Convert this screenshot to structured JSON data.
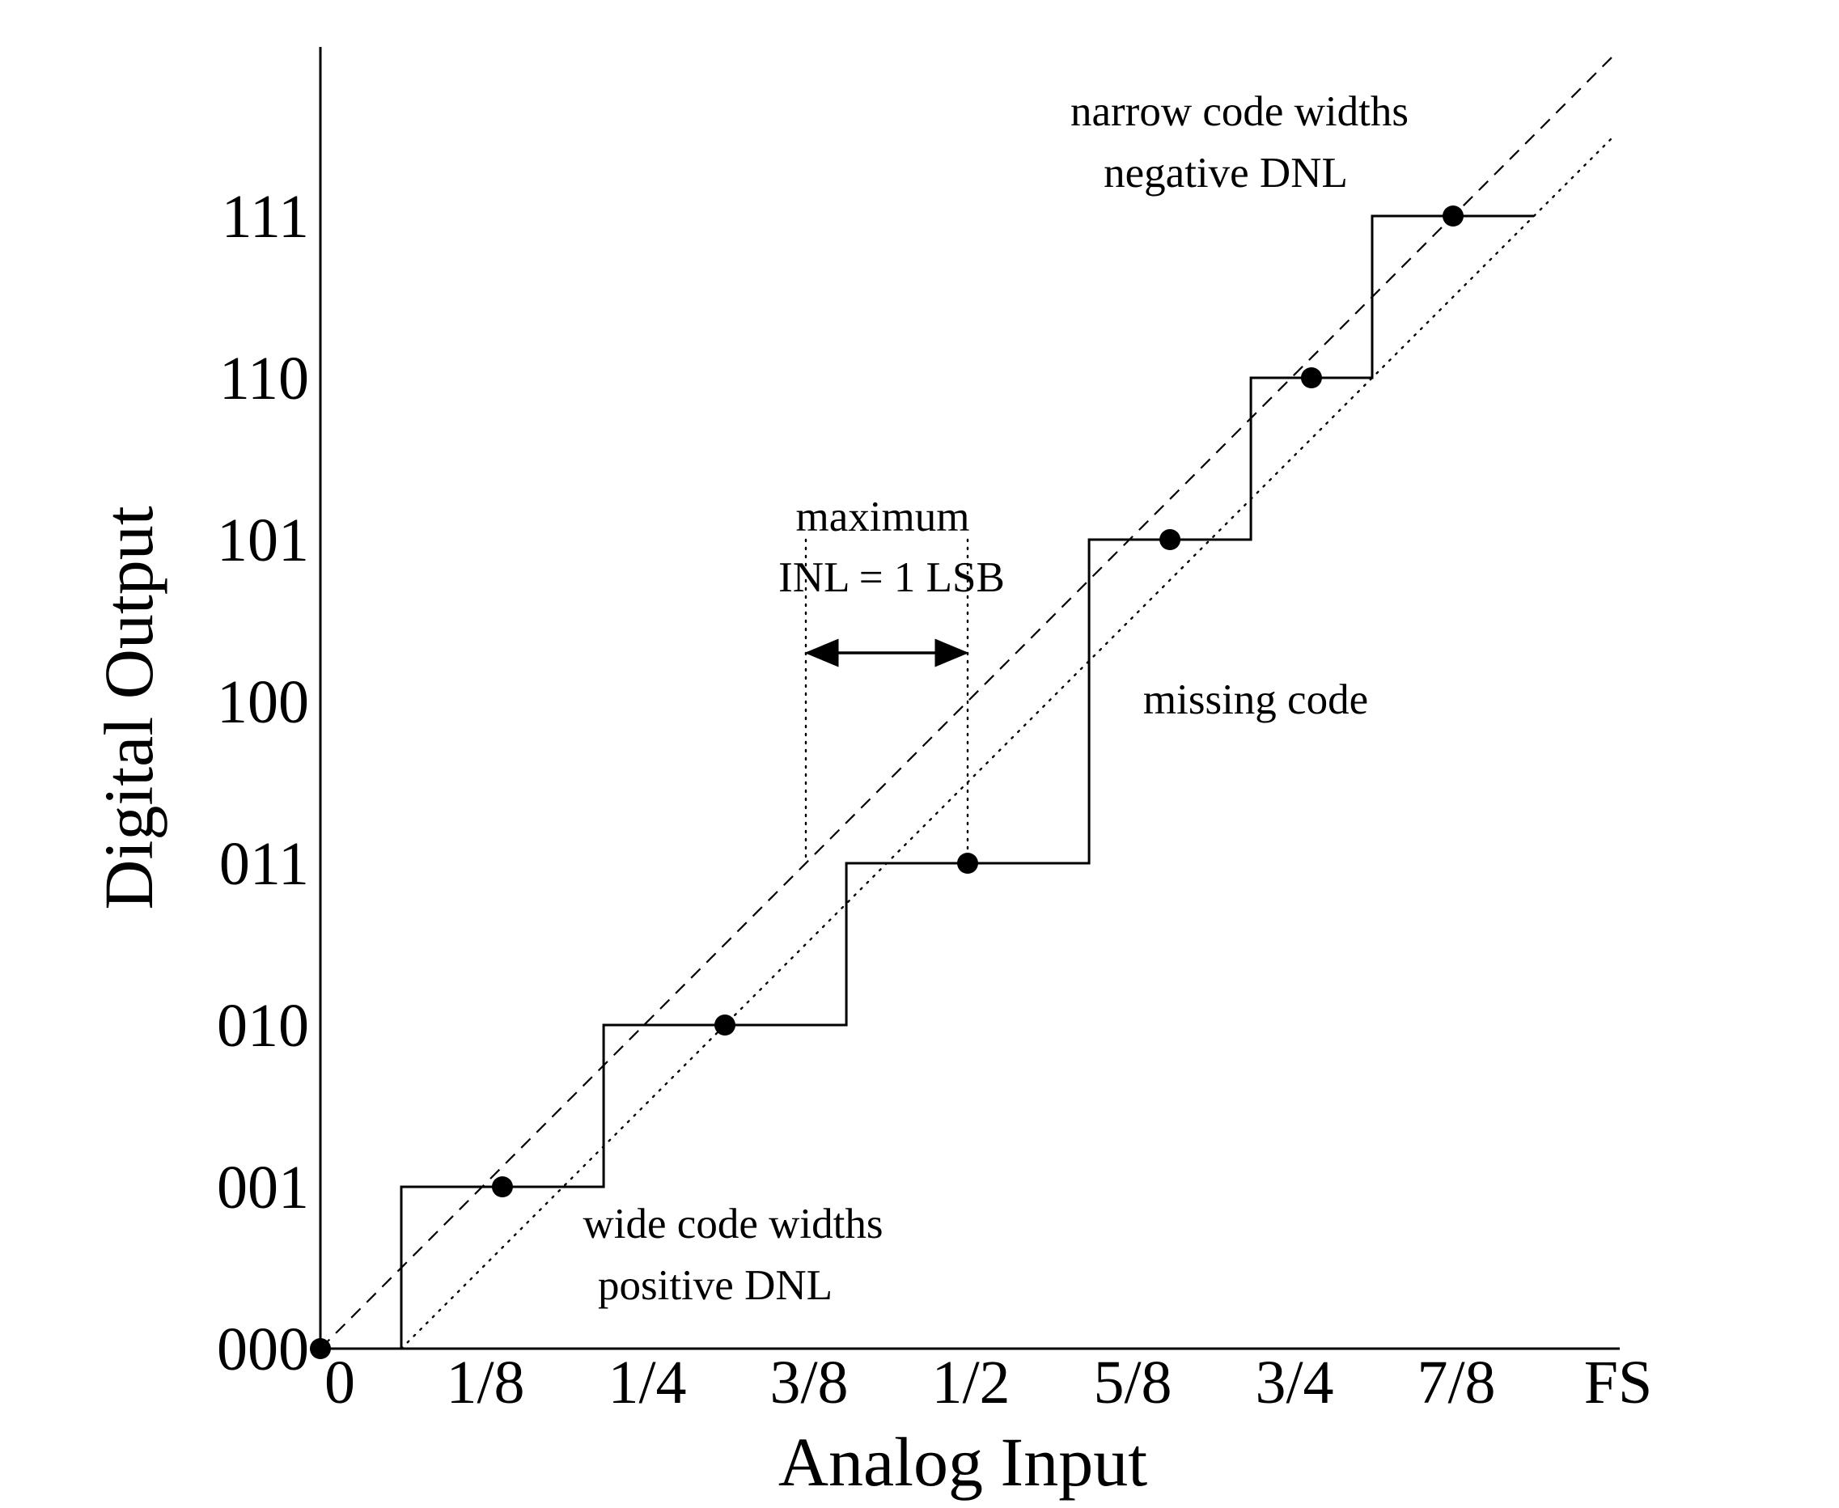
{
  "chart_data": {
    "type": "line",
    "x_axis": {
      "label": "Analog Input",
      "ticks": [
        "0",
        "1/8",
        "1/4",
        "3/8",
        "1/2",
        "5/8",
        "3/4",
        "7/8",
        "FS"
      ]
    },
    "y_axis": {
      "label": "Digital Output",
      "ticks": [
        "000",
        "001",
        "010",
        "011",
        "100",
        "101",
        "110",
        "111"
      ]
    },
    "transfer_steps": [
      {
        "code": "000",
        "x_start": 0,
        "x_end": 0.0625
      },
      {
        "code": "001",
        "x_start": 0.0625,
        "x_end": 0.2188
      },
      {
        "code": "010",
        "x_start": 0.2188,
        "x_end": 0.4063
      },
      {
        "code": "011",
        "x_start": 0.4063,
        "x_end": 0.5938
      },
      {
        "code": "101",
        "x_start": 0.5938,
        "x_end": 0.7188
      },
      {
        "code": "110",
        "x_start": 0.7188,
        "x_end": 0.8125
      },
      {
        "code": "111",
        "x_start": 0.8125,
        "x_end": 0.9375
      }
    ],
    "code_midpoints": [
      {
        "x": 0,
        "code": 0
      },
      {
        "x": 0.1406,
        "code": 1
      },
      {
        "x": 0.3125,
        "code": 2
      },
      {
        "x": 0.5,
        "code": 3
      },
      {
        "x": 0.6563,
        "code": 5
      },
      {
        "x": 0.7656,
        "code": 6
      },
      {
        "x": 0.875,
        "code": 7
      }
    ],
    "ideal_line": {
      "x0": 0,
      "code0": 0,
      "x1": 1,
      "code1": 8
    },
    "fit_line": {
      "x0": 0.0625,
      "code0": 0,
      "x1": 1,
      "code1": 7.5
    },
    "inl_marker": {
      "x_from": 0.375,
      "x_to": 0.5
    },
    "annotations": {
      "narrow_line1": "narrow code widths",
      "narrow_line2": "negative DNL",
      "maximum": "maximum",
      "inl": "INL = 1 LSB",
      "missing": "missing code",
      "wide_line1": "wide code widths",
      "wide_line2": "positive DNL"
    }
  }
}
